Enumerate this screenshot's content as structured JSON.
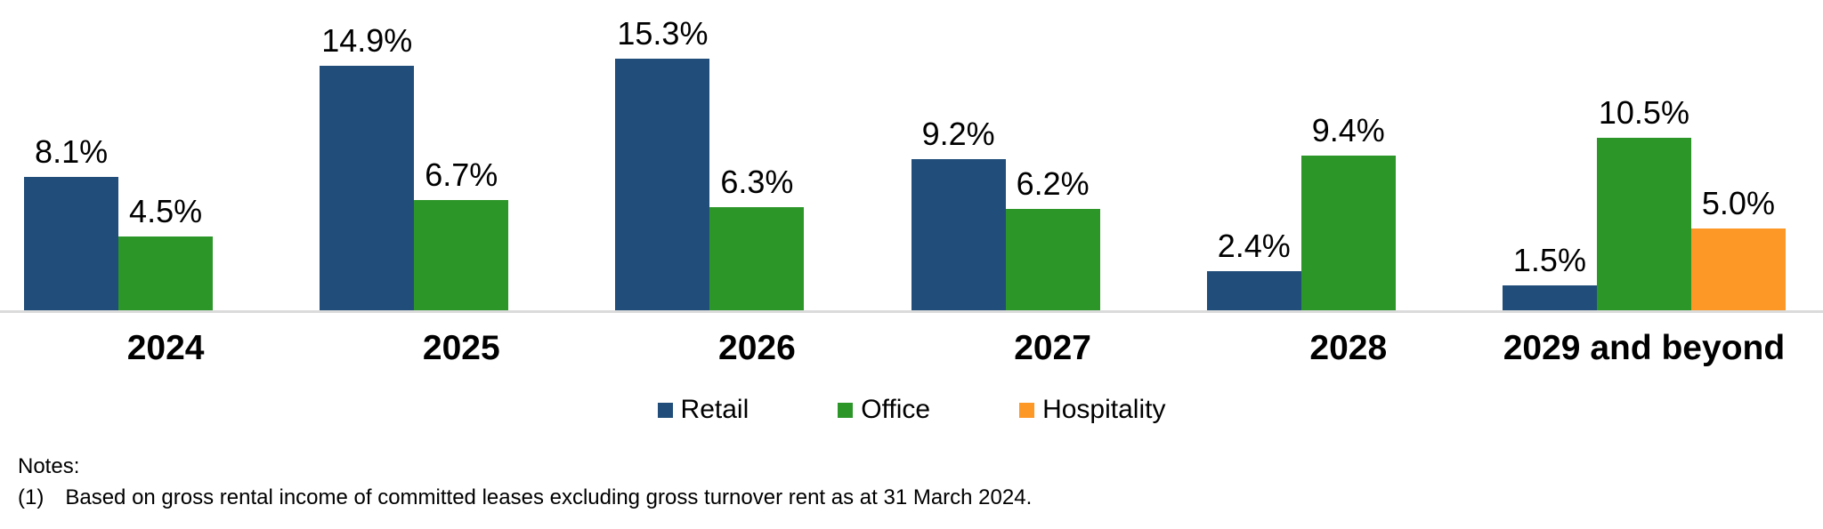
{
  "chart_data": {
    "type": "bar",
    "categories": [
      "2024",
      "2025",
      "2026",
      "2027",
      "2028",
      "2029 and beyond"
    ],
    "series": [
      {
        "name": "Retail",
        "color": "#204D79",
        "values": [
          8.1,
          14.9,
          15.3,
          9.2,
          2.4,
          1.5
        ]
      },
      {
        "name": "Office",
        "color": "#2C9629",
        "values": [
          4.5,
          6.7,
          6.3,
          6.2,
          9.4,
          10.5
        ]
      },
      {
        "name": "Hospitality",
        "color": "#FD9827",
        "values": [
          null,
          null,
          null,
          null,
          null,
          5.0
        ]
      }
    ],
    "data_label_suffix": "%",
    "title": "",
    "xlabel": "",
    "ylabel": "",
    "ylim": [
      0,
      18.9
    ],
    "grid": false,
    "legend_position": "bottom",
    "axis_line_color": "#dbdbdb"
  },
  "notes": {
    "heading": "Notes:",
    "items": [
      {
        "marker": "(1)",
        "text": "Based on gross rental income of committed leases excluding gross turnover rent as at 31 March 2024."
      }
    ]
  }
}
